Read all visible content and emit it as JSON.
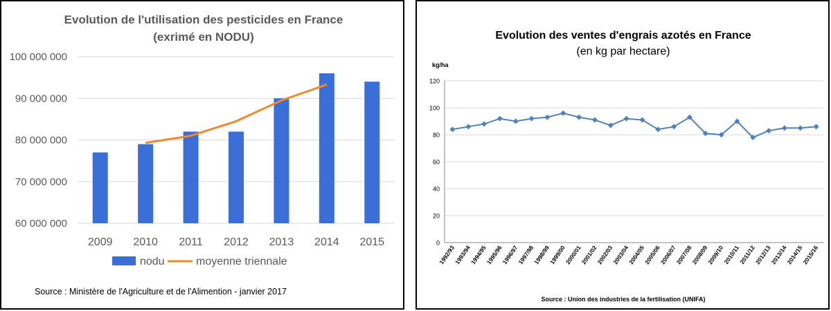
{
  "chart_data": [
    {
      "type": "bar",
      "title": "Evolution de l'utilisation des pesticides en France",
      "subtitle": "(exrimé en NODU)",
      "categories": [
        "2009",
        "2010",
        "2011",
        "2012",
        "2013",
        "2014",
        "2015"
      ],
      "y_ticks": [
        "100 000 000",
        "90 000 000",
        "80 000 000",
        "70 000 000",
        "60 000 000"
      ],
      "ylim": [
        60000000,
        100000000
      ],
      "grid": true,
      "legend_position": "bottom",
      "series": [
        {
          "name": "nodu",
          "kind": "bar",
          "color": "#3a6fd8",
          "values": [
            77000000,
            79000000,
            82000000,
            82000000,
            90000000,
            96000000,
            94000000
          ]
        },
        {
          "name": "moyenne triennale",
          "kind": "line",
          "color": "#f28a2c",
          "values": [
            null,
            79300000,
            81000000,
            84500000,
            89500000,
            93300000,
            null
          ]
        }
      ],
      "source": "Source : Ministère de l'Agriculture et de l'Alimention  - janvier 2017"
    },
    {
      "type": "line",
      "title": "Evolution des ventes d'engrais azotés en France",
      "subtitle": "(en kg par hectare)",
      "ylabel": "kg/ha",
      "categories": [
        "1992/93",
        "1993/94",
        "1994/95",
        "1995/96",
        "1996/97",
        "1997/98",
        "1998/99",
        "1999/00",
        "2000/01",
        "2001/02",
        "2002/03",
        "2003/04",
        "2004/05",
        "2005/06",
        "2006/07",
        "2007/08",
        "2008/09",
        "2009/10",
        "2010/11",
        "2011/12",
        "2012/13",
        "2013/14",
        "2014/15",
        "2015/16"
      ],
      "y_ticks": [
        "120",
        "100",
        "80",
        "60",
        "40",
        "20",
        "0"
      ],
      "ylim": [
        0,
        120
      ],
      "grid": true,
      "series": [
        {
          "color": "#4f81bd",
          "values": [
            84,
            86,
            88,
            92,
            90,
            92,
            93,
            96,
            93,
            91,
            87,
            92,
            91,
            84,
            86,
            93,
            81,
            80,
            90,
            78,
            83,
            85,
            85,
            86
          ]
        }
      ],
      "source": "Source : Union des industries de la fertilisation (UNIFA)"
    }
  ]
}
